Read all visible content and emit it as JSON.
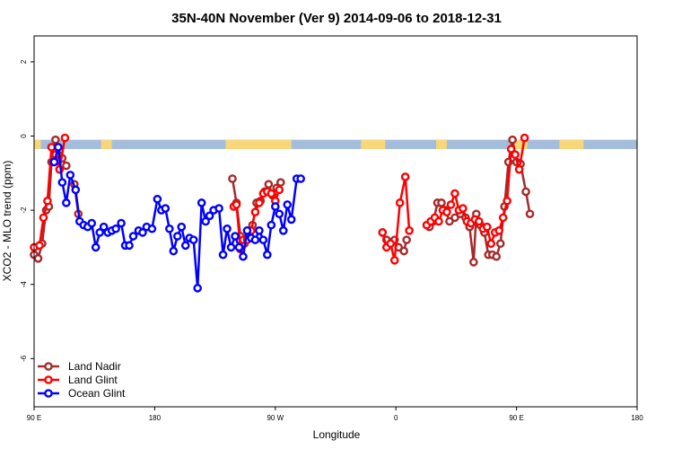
{
  "chart_data": {
    "type": "line",
    "title": "35N-40N November (Ver 9)   2014-09-06 to 2018-12-31",
    "xlabel": "Longitude",
    "ylabel": "XCO2 - MLO trend (ppm)",
    "xlim": [
      90,
      540
    ],
    "ylim": [
      -7.3,
      2.7
    ],
    "x_ticks": [
      {
        "value": 90,
        "label": "90 E"
      },
      {
        "value": 180,
        "label": "180"
      },
      {
        "value": 270,
        "label": "90 W"
      },
      {
        "value": 360,
        "label": "0"
      },
      {
        "value": 450,
        "label": "90 E"
      },
      {
        "value": 540,
        "label": "180"
      }
    ],
    "y_ticks": [
      {
        "value": 2,
        "label": "2"
      },
      {
        "value": 0,
        "label": "0"
      },
      {
        "value": -2,
        "label": "-2"
      },
      {
        "value": -4,
        "label": "-4"
      },
      {
        "value": -6,
        "label": "-6"
      }
    ],
    "legend_position": "bottom-left",
    "background_band": {
      "ymin": -0.35,
      "ymax": -0.1,
      "land_color": "#F8D77A",
      "ocean_color": "#A5BDDD",
      "land_ranges": [
        [
          90,
          95
        ],
        [
          140,
          148
        ],
        [
          233,
          282
        ],
        [
          334,
          352
        ],
        [
          390,
          398
        ],
        [
          447,
          458
        ],
        [
          482,
          500
        ]
      ]
    },
    "series": [
      {
        "name": "Land Nadir",
        "color": "#A52A2A",
        "segments": [
          [
            [
              90,
              -3.2
            ],
            [
              93,
              -3.3
            ],
            [
              96,
              -2.9
            ],
            [
              99,
              -2.0
            ],
            [
              101,
              -1.9
            ],
            [
              103,
              -0.7
            ],
            [
              106,
              -0.1
            ],
            [
              108,
              -0.5
            ],
            [
              111,
              -0.6
            ],
            [
              114,
              -0.8
            ]
          ],
          [
            [
              120,
              -1.3
            ],
            [
              123,
              -2.1
            ]
          ],
          [
            [
              238,
              -1.15
            ],
            [
              241,
              -1.8
            ],
            [
              244,
              -2.7
            ],
            [
              247,
              -2.9
            ],
            [
              250,
              -2.7
            ],
            [
              253,
              -2.4
            ],
            [
              256,
              -1.8
            ],
            [
              259,
              -1.75
            ],
            [
              262,
              -1.5
            ],
            [
              265,
              -1.3
            ],
            [
              268,
              -1.6
            ],
            [
              271,
              -1.4
            ],
            [
              274,
              -1.25
            ]
          ],
          [
            [
              350,
              -2.6
            ],
            [
              353,
              -2.8
            ],
            [
              356,
              -2.9
            ],
            [
              359,
              -2.8
            ],
            [
              362,
              -3.0
            ],
            [
              366,
              -3.1
            ],
            [
              368,
              -2.8
            ]
          ],
          [
            [
              385,
              -2.45
            ],
            [
              388,
              -2.3
            ],
            [
              391,
              -1.8
            ],
            [
              394,
              -1.8
            ],
            [
              397,
              -2.0
            ],
            [
              400,
              -2.3
            ],
            [
              404,
              -2.2
            ],
            [
              408,
              -2.1
            ],
            [
              412,
              -2.2
            ],
            [
              415,
              -2.45
            ],
            [
              418,
              -3.4
            ],
            [
              420,
              -2.1
            ],
            [
              423,
              -2.4
            ],
            [
              426,
              -2.6
            ],
            [
              429,
              -3.2
            ],
            [
              432,
              -3.2
            ],
            [
              435,
              -3.25
            ],
            [
              438,
              -2.9
            ],
            [
              441,
              -1.9
            ],
            [
              444,
              -0.7
            ],
            [
              447,
              -0.1
            ],
            [
              450,
              -0.7
            ],
            [
              453,
              -0.75
            ],
            [
              457,
              -1.5
            ],
            [
              460,
              -2.1
            ]
          ]
        ]
      },
      {
        "name": "Land Glint",
        "color": "#FF0000",
        "segments": [
          [
            [
              90,
              -3.0
            ],
            [
              94,
              -2.95
            ],
            [
              97,
              -2.2
            ],
            [
              100,
              -1.75
            ],
            [
              103,
              -0.3
            ],
            [
              106,
              -0.5
            ],
            [
              109,
              -0.9
            ],
            [
              113,
              -0.05
            ]
          ],
          [
            [
              239,
              -1.9
            ],
            [
              241,
              -1.85
            ],
            [
              244,
              -3.05
            ],
            [
              246,
              -2.8
            ],
            [
              249,
              -2.8
            ],
            [
              252,
              -2.55
            ],
            [
              255,
              -2.05
            ],
            [
              258,
              -1.8
            ],
            [
              261,
              -1.55
            ],
            [
              264,
              -1.5
            ],
            [
              267,
              -1.55
            ],
            [
              270,
              -1.75
            ],
            [
              273,
              -1.45
            ]
          ],
          [
            [
              350,
              -2.6
            ],
            [
              353,
              -3.0
            ],
            [
              356,
              -2.9
            ],
            [
              359,
              -3.35
            ],
            [
              363,
              -1.8
            ],
            [
              367,
              -1.1
            ],
            [
              370,
              -2.55
            ]
          ],
          [
            [
              383,
              -2.4
            ],
            [
              386,
              -2.3
            ],
            [
              389,
              -2.2
            ],
            [
              392,
              -2.3
            ],
            [
              395,
              -2.0
            ],
            [
              398,
              -2.05
            ],
            [
              401,
              -1.85
            ],
            [
              404,
              -1.55
            ],
            [
              407,
              -2.0
            ],
            [
              410,
              -1.95
            ],
            [
              413,
              -2.3
            ],
            [
              416,
              -2.35
            ],
            [
              419,
              -2.25
            ],
            [
              422,
              -2.3
            ],
            [
              425,
              -2.5
            ],
            [
              428,
              -2.45
            ],
            [
              431,
              -2.9
            ],
            [
              434,
              -2.6
            ],
            [
              437,
              -2.55
            ],
            [
              440,
              -2.2
            ],
            [
              443,
              -1.75
            ],
            [
              446,
              -0.35
            ],
            [
              449,
              -0.5
            ],
            [
              452,
              -0.9
            ],
            [
              456,
              -0.05
            ]
          ]
        ]
      },
      {
        "name": "Ocean Glint",
        "color": "#0000FF",
        "segments": [
          [
            [
              105,
              -0.7
            ],
            [
              108,
              -0.3
            ],
            [
              111,
              -1.25
            ],
            [
              114,
              -1.8
            ],
            [
              117,
              -1.05
            ],
            [
              121,
              -1.45
            ],
            [
              124,
              -2.3
            ],
            [
              127,
              -2.4
            ],
            [
              130,
              -2.45
            ],
            [
              133,
              -2.35
            ],
            [
              136,
              -3.0
            ],
            [
              139,
              -2.6
            ],
            [
              142,
              -2.45
            ],
            [
              145,
              -2.6
            ],
            [
              148,
              -2.55
            ],
            [
              151,
              -2.5
            ],
            [
              155,
              -2.35
            ],
            [
              158,
              -2.95
            ],
            [
              161,
              -2.95
            ],
            [
              164,
              -2.7
            ],
            [
              168,
              -2.55
            ],
            [
              171,
              -2.6
            ],
            [
              174,
              -2.45
            ],
            [
              178,
              -2.5
            ],
            [
              182,
              -1.7
            ],
            [
              185,
              -2.0
            ],
            [
              188,
              -1.95
            ],
            [
              191,
              -2.5
            ],
            [
              194,
              -3.1
            ],
            [
              197,
              -2.7
            ],
            [
              200,
              -2.45
            ],
            [
              203,
              -2.95
            ],
            [
              206,
              -2.75
            ],
            [
              209,
              -2.8
            ],
            [
              212,
              -4.1
            ],
            [
              215,
              -1.8
            ],
            [
              218,
              -2.3
            ],
            [
              221,
              -2.15
            ],
            [
              224,
              -2.0
            ],
            [
              228,
              -1.95
            ],
            [
              231,
              -3.2
            ],
            [
              234,
              -2.5
            ],
            [
              237,
              -3.0
            ],
            [
              240,
              -2.7
            ],
            [
              243,
              -3.0
            ],
            [
              246,
              -3.25
            ],
            [
              249,
              -2.55
            ],
            [
              252,
              -2.75
            ],
            [
              255,
              -2.8
            ],
            [
              258,
              -2.55
            ],
            [
              261,
              -2.8
            ],
            [
              264,
              -3.2
            ],
            [
              267,
              -2.4
            ],
            [
              270,
              -1.9
            ],
            [
              273,
              -2.1
            ],
            [
              276,
              -2.55
            ],
            [
              279,
              -1.85
            ],
            [
              282,
              -2.25
            ],
            [
              286,
              -1.15
            ],
            [
              289,
              -1.15
            ]
          ]
        ]
      }
    ]
  }
}
